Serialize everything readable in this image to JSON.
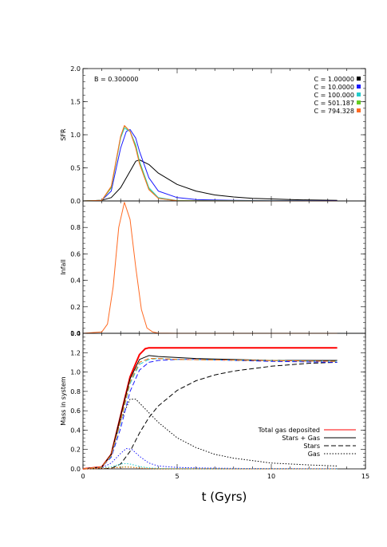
{
  "chart_data": [
    {
      "type": "line",
      "panel": "top",
      "ylabel": "SFR",
      "ylim": [
        0,
        2.0
      ],
      "yticks": [
        "0.0",
        "0.5",
        "1.0",
        "1.5",
        "2.0"
      ],
      "xlim": [
        0,
        15
      ],
      "annotation": "B = 0.300000",
      "legend_position": "top-right",
      "grid": false,
      "series": [
        {
          "name": "C = 1.00000",
          "color": "#000000",
          "x": [
            0,
            1,
            1.5,
            2,
            2.5,
            2.8,
            3,
            3.5,
            4,
            5,
            6,
            7,
            8,
            9,
            10,
            11,
            12,
            13.5
          ],
          "values": [
            0,
            0.01,
            0.05,
            0.2,
            0.45,
            0.6,
            0.62,
            0.55,
            0.42,
            0.25,
            0.15,
            0.09,
            0.06,
            0.04,
            0.03,
            0.02,
            0.015,
            0.01
          ]
        },
        {
          "name": "C = 10.0000",
          "color": "#1a1aff",
          "x": [
            0,
            1,
            1.5,
            2,
            2.3,
            2.5,
            2.8,
            3,
            3.5,
            4,
            5,
            6,
            8,
            10,
            13.5
          ],
          "values": [
            0,
            0.01,
            0.15,
            0.8,
            1.05,
            1.08,
            0.95,
            0.75,
            0.35,
            0.15,
            0.05,
            0.02,
            0.01,
            0.005,
            0.003
          ]
        },
        {
          "name": "C = 100.000",
          "color": "#22cccc",
          "x": [
            0,
            1,
            1.5,
            2,
            2.2,
            2.5,
            2.8,
            3,
            3.5,
            4,
            5,
            13.5
          ],
          "values": [
            0,
            0.01,
            0.2,
            0.95,
            1.1,
            1.05,
            0.85,
            0.6,
            0.2,
            0.05,
            0.005,
            0
          ]
        },
        {
          "name": "C = 501.187",
          "color": "#66cc22",
          "x": [
            0,
            1,
            1.5,
            2,
            2.2,
            2.5,
            2.8,
            3,
            3.5,
            4,
            5,
            13.5
          ],
          "values": [
            0,
            0.01,
            0.2,
            0.97,
            1.13,
            1.05,
            0.82,
            0.58,
            0.18,
            0.04,
            0.004,
            0
          ]
        },
        {
          "name": "C = 794.328",
          "color": "#ff6a22",
          "x": [
            0,
            1,
            1.5,
            2,
            2.2,
            2.5,
            2.8,
            3,
            3.5,
            4,
            5,
            13.5
          ],
          "values": [
            0,
            0.01,
            0.22,
            0.98,
            1.14,
            1.05,
            0.8,
            0.56,
            0.17,
            0.04,
            0.003,
            0
          ]
        }
      ]
    },
    {
      "type": "line",
      "panel": "middle",
      "ylabel": "Infall",
      "ylim": [
        0,
        1.0
      ],
      "yticks": [
        "0.0",
        "0.2",
        "0.4",
        "0.6",
        "0.8"
      ],
      "xlim": [
        0,
        15
      ],
      "grid": false,
      "series": [
        {
          "color": "#ff6a22",
          "x": [
            0,
            1,
            1.3,
            1.6,
            1.9,
            2.2,
            2.5,
            2.8,
            3.1,
            3.4,
            3.7,
            4,
            5,
            13.5
          ],
          "values": [
            0,
            0.01,
            0.07,
            0.35,
            0.8,
            0.99,
            0.86,
            0.5,
            0.18,
            0.04,
            0.01,
            0.001,
            0,
            0
          ]
        }
      ]
    },
    {
      "type": "line",
      "panel": "bottom",
      "ylabel": "Mass in system",
      "xlabel": "t (Gyrs)",
      "ylim": [
        0,
        1.4
      ],
      "yticks": [
        "0.0",
        "0.2",
        "0.4",
        "0.6",
        "0.8",
        "1.0",
        "1.2",
        "1.4"
      ],
      "xlim": [
        0,
        15
      ],
      "xticks": [
        "0",
        "5",
        "10",
        "15"
      ],
      "legend_position": "bottom-right",
      "grid": false,
      "legend": [
        {
          "label": "Total gas deposited",
          "color": "#ff0000",
          "dash": "solid"
        },
        {
          "label": "Stars + Gas",
          "color": "#000000",
          "dash": "solid"
        },
        {
          "label": "Stars",
          "color": "#000000",
          "dash": "long-dash"
        },
        {
          "label": "Gas",
          "color": "#000000",
          "dash": "dotted"
        }
      ],
      "series": [
        {
          "color": "#ff0000",
          "dash": "solid",
          "width": 2,
          "x": [
            0,
            1,
            1.5,
            2,
            2.5,
            3,
            3.3,
            3.5,
            4,
            5,
            13.5
          ],
          "values": [
            0,
            0.02,
            0.15,
            0.55,
            0.95,
            1.18,
            1.24,
            1.25,
            1.25,
            1.25,
            1.25
          ]
        },
        {
          "color": "#000000",
          "dash": "solid",
          "x": [
            0,
            1,
            1.5,
            2,
            2.5,
            3,
            3.5,
            4,
            6,
            10,
            13.5
          ],
          "values": [
            0,
            0.02,
            0.15,
            0.55,
            0.93,
            1.13,
            1.17,
            1.16,
            1.14,
            1.12,
            1.12
          ]
        },
        {
          "color": "#000000",
          "dash": "long-dash",
          "x": [
            0,
            1.5,
            2,
            2.5,
            3,
            3.5,
            4,
            5,
            6,
            7,
            8,
            10,
            12,
            13.5
          ],
          "values": [
            0,
            0.005,
            0.05,
            0.18,
            0.37,
            0.53,
            0.65,
            0.81,
            0.91,
            0.97,
            1.01,
            1.06,
            1.09,
            1.1
          ]
        },
        {
          "color": "#000000",
          "dash": "dotted",
          "x": [
            0,
            1,
            1.5,
            2,
            2.5,
            2.8,
            3,
            3.5,
            4,
            5,
            6,
            7,
            8,
            10,
            12,
            13.5
          ],
          "values": [
            0,
            0.02,
            0.15,
            0.5,
            0.72,
            0.72,
            0.68,
            0.58,
            0.48,
            0.32,
            0.22,
            0.15,
            0.11,
            0.06,
            0.04,
            0.03
          ]
        },
        {
          "color": "#1a1aff",
          "dash": "long-dash",
          "x": [
            0,
            1,
            1.5,
            2,
            2.5,
            3,
            3.5,
            4,
            5,
            6,
            8,
            10,
            13.5
          ],
          "values": [
            0,
            0.02,
            0.12,
            0.42,
            0.8,
            1.02,
            1.1,
            1.12,
            1.13,
            1.13,
            1.12,
            1.11,
            1.1
          ]
        },
        {
          "color": "#1a1aff",
          "dash": "dotted",
          "x": [
            0,
            1,
            1.5,
            2,
            2.3,
            2.6,
            3,
            3.5,
            4,
            5,
            6,
            8,
            10,
            13.5
          ],
          "values": [
            0,
            0.01,
            0.06,
            0.16,
            0.21,
            0.2,
            0.13,
            0.06,
            0.03,
            0.015,
            0.01,
            0.005,
            0.003,
            0.002
          ]
        },
        {
          "color": "#22cccc",
          "dash": "long-dash",
          "x": [
            0,
            1,
            1.5,
            2,
            2.5,
            3,
            3.5,
            4,
            5,
            13.5
          ],
          "values": [
            0,
            0.02,
            0.13,
            0.48,
            0.88,
            1.08,
            1.13,
            1.14,
            1.13,
            1.11
          ]
        },
        {
          "color": "#22cccc",
          "dash": "dotted",
          "x": [
            0,
            1,
            1.5,
            2,
            2.3,
            2.6,
            3,
            3.5,
            4,
            5,
            13.5
          ],
          "values": [
            0,
            0.01,
            0.02,
            0.05,
            0.055,
            0.045,
            0.025,
            0.01,
            0.005,
            0.002,
            0
          ]
        },
        {
          "color": "#66cc22",
          "dash": "long-dash",
          "x": [
            0,
            1,
            1.5,
            2,
            2.5,
            3,
            3.5,
            4,
            5,
            13.5
          ],
          "values": [
            0,
            0.02,
            0.14,
            0.5,
            0.9,
            1.1,
            1.14,
            1.14,
            1.13,
            1.11
          ]
        },
        {
          "color": "#66cc22",
          "dash": "dotted",
          "x": [
            0,
            1,
            1.5,
            2,
            2.3,
            2.6,
            3,
            3.5,
            4,
            13.5
          ],
          "values": [
            0,
            0.005,
            0.01,
            0.02,
            0.022,
            0.018,
            0.01,
            0.004,
            0.001,
            0
          ]
        },
        {
          "color": "#ff6a22",
          "dash": "long-dash",
          "x": [
            0,
            1,
            1.5,
            2,
            2.5,
            3,
            3.5,
            4,
            5,
            13.5
          ],
          "values": [
            0,
            0.02,
            0.14,
            0.5,
            0.9,
            1.1,
            1.14,
            1.14,
            1.13,
            1.11
          ]
        },
        {
          "color": "#ff6a22",
          "dash": "dotted",
          "x": [
            0,
            1,
            1.5,
            2,
            2.3,
            2.6,
            3,
            3.5,
            4,
            13.5
          ],
          "values": [
            0,
            0.004,
            0.008,
            0.015,
            0.018,
            0.015,
            0.008,
            0.003,
            0.001,
            0
          ]
        }
      ]
    }
  ]
}
